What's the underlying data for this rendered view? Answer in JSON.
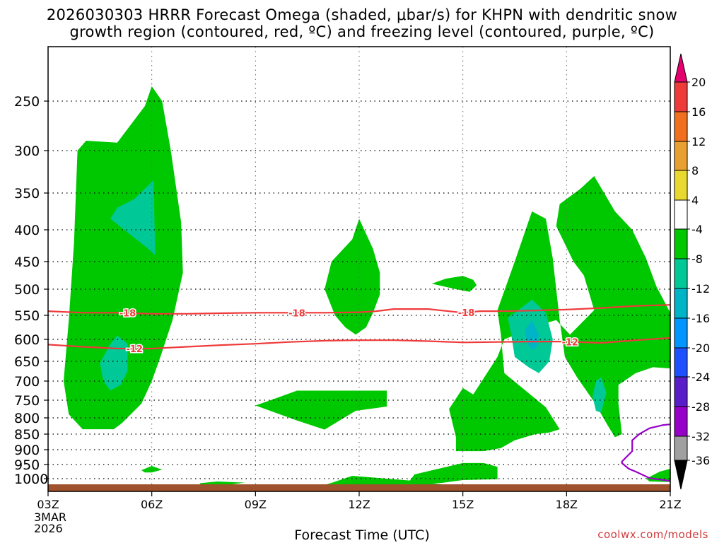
{
  "chart_data": {
    "type": "contour",
    "title_line1": "2026030303 HRRR Forecast Omega (shaded, μbar/s) for KHPN with dendritic snow",
    "title_line2": "growth region (contoured, red, ºC) and freezing level (contoured, purple, ºC)",
    "xlabel": "Forecast Time (UTC)",
    "x_ticks": [
      "03Z",
      "06Z",
      "09Z",
      "12Z",
      "15Z",
      "18Z",
      "21Z"
    ],
    "x_date_line1": "3MAR",
    "x_date_line2": "2026",
    "xlim_hours": [
      3,
      21
    ],
    "y_ticks": [
      250,
      300,
      350,
      400,
      450,
      500,
      550,
      600,
      650,
      700,
      750,
      800,
      850,
      900,
      950,
      1000
    ],
    "ylim_hpa": [
      1025,
      200
    ],
    "grid": true,
    "colorbar": {
      "labels": [
        "20",
        "16",
        "12",
        "8",
        "4",
        "-4",
        "-8",
        "-12",
        "-16",
        "-20",
        "-24",
        "-28",
        "-32",
        "-36"
      ],
      "colors": [
        "#e6006e",
        "#ef3a3a",
        "#f07020",
        "#e8a030",
        "#e8d830",
        "#ffffff",
        "#00c800",
        "#00c896",
        "#00b4c8",
        "#0096ff",
        "#1e50ff",
        "#5a1ec8",
        "#9600c8",
        "#a0a0a0",
        "#000000"
      ]
    },
    "regions": [
      {
        "band": "-8 to -4",
        "color": "#00c800",
        "polygons": [
          [
            [
              3.85,
              300
            ],
            [
              4.1,
              290
            ],
            [
              5.0,
              292
            ],
            [
              5.8,
              255
            ],
            [
              6.0,
              235
            ],
            [
              6.3,
              250
            ],
            [
              6.55,
              300
            ],
            [
              6.85,
              390
            ],
            [
              6.9,
              470
            ],
            [
              6.6,
              560
            ],
            [
              6.25,
              640
            ],
            [
              6.0,
              700
            ],
            [
              5.7,
              760
            ],
            [
              5.15,
              815
            ],
            [
              4.9,
              835
            ],
            [
              4.0,
              835
            ],
            [
              3.6,
              790
            ],
            [
              3.45,
              700
            ],
            [
              3.6,
              560
            ],
            [
              3.75,
              420
            ]
          ],
          [
            [
              11.0,
              500
            ],
            [
              11.2,
              450
            ],
            [
              11.8,
              415
            ],
            [
              12.0,
              385
            ],
            [
              12.4,
              430
            ],
            [
              12.6,
              470
            ],
            [
              12.6,
              510
            ],
            [
              12.4,
              545
            ],
            [
              12.2,
              575
            ],
            [
              11.9,
              590
            ],
            [
              11.6,
              575
            ],
            [
              11.3,
              550
            ]
          ],
          [
            [
              9.0,
              765
            ],
            [
              9.5,
              748
            ],
            [
              10.2,
              725
            ],
            [
              12.8,
              725
            ],
            [
              12.8,
              768
            ],
            [
              11.9,
              780
            ],
            [
              11.0,
              836
            ],
            [
              10.2,
              808
            ]
          ],
          [
            [
              14.1,
              490
            ],
            [
              14.5,
              481
            ],
            [
              15.0,
              476
            ],
            [
              15.3,
              483
            ],
            [
              15.4,
              493
            ],
            [
              15.2,
              505
            ],
            [
              14.8,
              500
            ]
          ],
          [
            [
              16.0,
              540
            ],
            [
              16.5,
              450
            ],
            [
              17.0,
              375
            ],
            [
              17.4,
              385
            ],
            [
              17.6,
              445
            ],
            [
              17.8,
              560
            ],
            [
              17.95,
              640
            ],
            [
              18.3,
              690
            ],
            [
              18.8,
              755
            ],
            [
              19.2,
              825
            ],
            [
              19.4,
              860
            ],
            [
              19.6,
              850
            ],
            [
              19.5,
              760
            ],
            [
              19.5,
              710
            ],
            [
              20.0,
              680
            ],
            [
              20.5,
              665
            ],
            [
              21.0,
              668
            ],
            [
              21.0,
              545
            ],
            [
              20.6,
              495
            ],
            [
              20.3,
              445
            ],
            [
              19.9,
              400
            ],
            [
              19.4,
              375
            ],
            [
              18.8,
              330
            ],
            [
              18.4,
              345
            ],
            [
              17.8,
              365
            ],
            [
              17.7,
              395
            ],
            [
              18.2,
              450
            ],
            [
              18.5,
              475
            ],
            [
              18.8,
              540
            ],
            [
              18.1,
              590
            ],
            [
              17.7,
              560
            ],
            [
              17.2,
              570
            ],
            [
              16.2,
              600
            ],
            [
              16.0,
              640
            ],
            [
              15.3,
              735
            ],
            [
              15.0,
              718
            ],
            [
              14.6,
              775
            ],
            [
              14.8,
              860
            ],
            [
              14.8,
              905
            ],
            [
              15.6,
              905
            ],
            [
              16.1,
              895
            ],
            [
              16.5,
              870
            ],
            [
              17.1,
              850
            ],
            [
              17.5,
              845
            ],
            [
              17.8,
              835
            ],
            [
              17.4,
              770
            ],
            [
              16.2,
              680
            ],
            [
              16.1,
              590
            ]
          ],
          [
            [
              13.6,
              985
            ],
            [
              15.0,
              945
            ],
            [
              15.6,
              945
            ],
            [
              16.0,
              958
            ],
            [
              16.0,
              1002
            ],
            [
              15.0,
              1005
            ],
            [
              14.4,
              1015
            ],
            [
              13.4,
              1018
            ]
          ],
          [
            [
              11.2,
              1015
            ],
            [
              11.8,
              990
            ],
            [
              12.8,
              1000
            ],
            [
              13.3,
              1005
            ],
            [
              13.8,
              1010
            ],
            [
              14.4,
              1020
            ],
            [
              11.0,
              1022
            ]
          ],
          [
            [
              7.4,
              1016
            ],
            [
              7.9,
              1010
            ],
            [
              8.7,
              1014
            ],
            [
              8.2,
              1022
            ],
            [
              7.4,
              1022
            ]
          ],
          [
            [
              5.7,
              970
            ],
            [
              6.0,
              955
            ],
            [
              6.3,
              968
            ],
            [
              6.0,
              978
            ],
            [
              5.8,
              978
            ]
          ],
          [
            [
              20.3,
              1000
            ],
            [
              20.7,
              975
            ],
            [
              21.0,
              965
            ],
            [
              21.0,
              1012
            ],
            [
              20.4,
              1010
            ]
          ]
        ]
      },
      {
        "band": "-12 to -8",
        "color": "#00c896",
        "polygons": [
          [
            [
              4.8,
              385
            ],
            [
              5.0,
              370
            ],
            [
              5.5,
              358
            ],
            [
              6.05,
              335
            ],
            [
              6.1,
              440
            ],
            [
              5.9,
              430
            ],
            [
              5.2,
              400
            ]
          ],
          [
            [
              4.5,
              655
            ],
            [
              4.8,
              610
            ],
            [
              5.0,
              592
            ],
            [
              5.3,
              610
            ],
            [
              5.3,
              675
            ],
            [
              5.1,
              710
            ],
            [
              4.8,
              725
            ],
            [
              4.6,
              700
            ]
          ],
          [
            [
              16.3,
              555
            ],
            [
              16.7,
              535
            ],
            [
              17.0,
              520
            ],
            [
              17.4,
              545
            ],
            [
              17.6,
              600
            ],
            [
              17.5,
              650
            ],
            [
              17.2,
              680
            ],
            [
              16.9,
              665
            ],
            [
              16.5,
              640
            ],
            [
              16.4,
              590
            ]
          ],
          [
            [
              18.75,
              740
            ],
            [
              18.85,
              700
            ],
            [
              19.0,
              690
            ],
            [
              19.15,
              730
            ],
            [
              19.0,
              785
            ],
            [
              18.85,
              780
            ]
          ]
        ]
      },
      {
        "band": "-16 to -12",
        "color": "#00b4c8",
        "polygons": [
          [
            [
              16.8,
              580
            ],
            [
              17.0,
              560
            ],
            [
              17.2,
              590
            ],
            [
              17.15,
              615
            ],
            [
              17.0,
              625
            ],
            [
              16.85,
              605
            ]
          ]
        ]
      }
    ],
    "isotherms": [
      {
        "label": "-18",
        "color": "#ef3a3a",
        "points": [
          [
            3,
            542
          ],
          [
            4,
            545
          ],
          [
            5,
            545
          ],
          [
            6,
            547
          ],
          [
            7,
            547
          ],
          [
            8,
            546
          ],
          [
            9,
            545
          ],
          [
            10,
            545
          ],
          [
            11,
            545
          ],
          [
            12,
            544
          ],
          [
            12.5,
            542
          ],
          [
            13,
            538
          ],
          [
            14,
            538
          ],
          [
            15,
            545
          ],
          [
            15.5,
            542
          ],
          [
            16,
            542
          ],
          [
            17,
            541
          ],
          [
            18,
            539
          ],
          [
            19,
            536
          ],
          [
            20,
            532
          ],
          [
            21,
            530
          ]
        ],
        "label_x": [
          5.3,
          10.2,
          15.1
        ]
      },
      {
        "label": "-12",
        "color": "#ef3a3a",
        "points": [
          [
            3,
            612
          ],
          [
            4,
            617
          ],
          [
            5,
            621
          ],
          [
            6,
            621
          ],
          [
            7,
            617
          ],
          [
            8,
            613
          ],
          [
            9,
            610
          ],
          [
            10,
            606
          ],
          [
            11,
            603
          ],
          [
            12,
            602
          ],
          [
            13,
            602
          ],
          [
            14,
            604
          ],
          [
            15,
            607
          ],
          [
            16,
            606
          ],
          [
            17,
            605
          ],
          [
            18,
            605
          ],
          [
            19,
            608
          ],
          [
            20,
            602
          ],
          [
            21,
            597
          ]
        ],
        "label_x": [
          5.5,
          18.1
        ]
      },
      {
        "label": "",
        "color": "#9600c8",
        "points": [
          [
            21,
            820
          ],
          [
            20.8,
            822
          ],
          [
            20.4,
            832
          ],
          [
            20.1,
            850
          ],
          [
            19.9,
            870
          ],
          [
            19.9,
            905
          ],
          [
            19.6,
            940
          ],
          [
            19.6,
            945
          ],
          [
            19.8,
            965
          ],
          [
            20.0,
            975
          ],
          [
            20.4,
            998
          ],
          [
            20.7,
            1003
          ],
          [
            21,
            1008
          ]
        ],
        "label_x": []
      }
    ]
  },
  "credit": "coolwx.com/models"
}
